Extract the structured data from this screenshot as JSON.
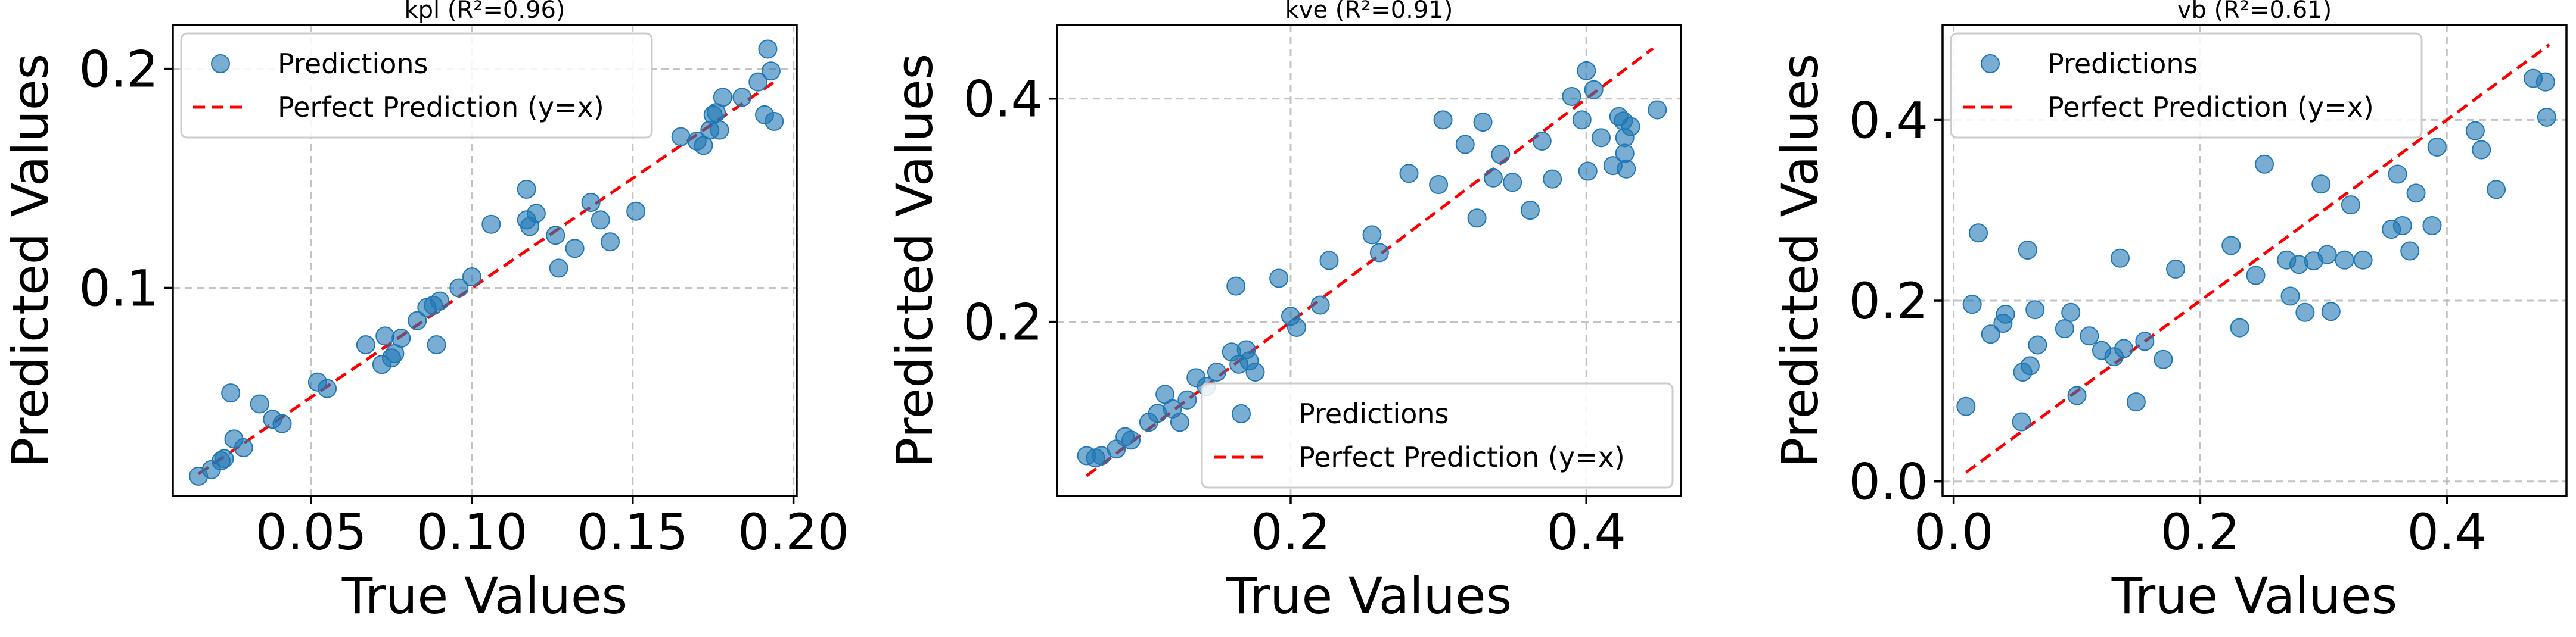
{
  "chart_data": [
    {
      "type": "scatter",
      "title": "kpl (R²=0.96)",
      "xlabel": "True Values",
      "ylabel": "Predicted Values",
      "xlim": [
        0.007,
        0.201
      ],
      "ylim": [
        0.005,
        0.22
      ],
      "xticks": [
        0.05,
        0.1,
        0.15,
        0.2
      ],
      "xtick_labels": [
        "0.05",
        "0.10",
        "0.15",
        "0.20"
      ],
      "yticks": [
        0.1,
        0.2
      ],
      "ytick_labels": [
        "0.1",
        "0.2"
      ],
      "grid": true,
      "legend_position": "upper-left",
      "series": [
        {
          "name": "Predictions",
          "kind": "points",
          "color": "#1f77b4",
          "points": [
            [
              0.015,
              0.014
            ],
            [
              0.019,
              0.017
            ],
            [
              0.022,
              0.021
            ],
            [
              0.023,
              0.022
            ],
            [
              0.025,
              0.052
            ],
            [
              0.026,
              0.031
            ],
            [
              0.029,
              0.027
            ],
            [
              0.034,
              0.047
            ],
            [
              0.038,
              0.04
            ],
            [
              0.041,
              0.038
            ],
            [
              0.052,
              0.057
            ],
            [
              0.055,
              0.054
            ],
            [
              0.067,
              0.074
            ],
            [
              0.072,
              0.065
            ],
            [
              0.073,
              0.078
            ],
            [
              0.075,
              0.068
            ],
            [
              0.076,
              0.07
            ],
            [
              0.078,
              0.077
            ],
            [
              0.083,
              0.085
            ],
            [
              0.086,
              0.091
            ],
            [
              0.088,
              0.092
            ],
            [
              0.089,
              0.074
            ],
            [
              0.09,
              0.094
            ],
            [
              0.096,
              0.1
            ],
            [
              0.1,
              0.105
            ],
            [
              0.106,
              0.129
            ],
            [
              0.117,
              0.145
            ],
            [
              0.117,
              0.131
            ],
            [
              0.118,
              0.128
            ],
            [
              0.12,
              0.134
            ],
            [
              0.126,
              0.124
            ],
            [
              0.127,
              0.109
            ],
            [
              0.132,
              0.118
            ],
            [
              0.137,
              0.139
            ],
            [
              0.14,
              0.131
            ],
            [
              0.143,
              0.121
            ],
            [
              0.151,
              0.135
            ],
            [
              0.165,
              0.169
            ],
            [
              0.17,
              0.167
            ],
            [
              0.172,
              0.165
            ],
            [
              0.174,
              0.172
            ],
            [
              0.175,
              0.179
            ],
            [
              0.176,
              0.18
            ],
            [
              0.177,
              0.172
            ],
            [
              0.178,
              0.187
            ],
            [
              0.184,
              0.187
            ],
            [
              0.189,
              0.194
            ],
            [
              0.191,
              0.179
            ],
            [
              0.192,
              0.209
            ],
            [
              0.193,
              0.199
            ],
            [
              0.194,
              0.176
            ]
          ]
        },
        {
          "name": "Perfect Prediction (y=x)",
          "kind": "line",
          "color": "#ff0000",
          "x": [
            0.015,
            0.194
          ],
          "y": [
            0.015,
            0.194
          ]
        }
      ]
    },
    {
      "type": "scatter",
      "title": "kve (R²=0.91)",
      "xlabel": "True Values",
      "ylabel": "Predicted Values",
      "xlim": [
        0.042,
        0.464
      ],
      "ylim": [
        0.044,
        0.466
      ],
      "xticks": [
        0.2,
        0.4
      ],
      "xtick_labels": [
        "0.2",
        "0.4"
      ],
      "yticks": [
        0.2,
        0.4
      ],
      "ytick_labels": [
        "0.2",
        "0.4"
      ],
      "grid": true,
      "legend_position": "lower-right",
      "series": [
        {
          "name": "Predictions",
          "kind": "points",
          "color": "#1f77b4",
          "points": [
            [
              0.062,
              0.08
            ],
            [
              0.068,
              0.078
            ],
            [
              0.072,
              0.08
            ],
            [
              0.082,
              0.086
            ],
            [
              0.088,
              0.097
            ],
            [
              0.092,
              0.094
            ],
            [
              0.104,
              0.11
            ],
            [
              0.11,
              0.118
            ],
            [
              0.115,
              0.135
            ],
            [
              0.12,
              0.122
            ],
            [
              0.125,
              0.11
            ],
            [
              0.13,
              0.13
            ],
            [
              0.136,
              0.15
            ],
            [
              0.143,
              0.142
            ],
            [
              0.15,
              0.155
            ],
            [
              0.16,
              0.173
            ],
            [
              0.163,
              0.232
            ],
            [
              0.165,
              0.162
            ],
            [
              0.17,
              0.175
            ],
            [
              0.172,
              0.165
            ],
            [
              0.176,
              0.155
            ],
            [
              0.192,
              0.239
            ],
            [
              0.2,
              0.205
            ],
            [
              0.204,
              0.195
            ],
            [
              0.22,
              0.215
            ],
            [
              0.226,
              0.255
            ],
            [
              0.255,
              0.278
            ],
            [
              0.26,
              0.262
            ],
            [
              0.28,
              0.333
            ],
            [
              0.3,
              0.323
            ],
            [
              0.303,
              0.381
            ],
            [
              0.318,
              0.359
            ],
            [
              0.326,
              0.293
            ],
            [
              0.33,
              0.379
            ],
            [
              0.337,
              0.329
            ],
            [
              0.342,
              0.35
            ],
            [
              0.35,
              0.325
            ],
            [
              0.362,
              0.3
            ],
            [
              0.37,
              0.362
            ],
            [
              0.377,
              0.328
            ],
            [
              0.39,
              0.402
            ],
            [
              0.397,
              0.381
            ],
            [
              0.4,
              0.425
            ],
            [
              0.401,
              0.335
            ],
            [
              0.405,
              0.408
            ],
            [
              0.41,
              0.365
            ],
            [
              0.418,
              0.34
            ],
            [
              0.422,
              0.384
            ],
            [
              0.425,
              0.38
            ],
            [
              0.426,
              0.365
            ],
            [
              0.426,
              0.351
            ],
            [
              0.427,
              0.337
            ],
            [
              0.43,
              0.375
            ],
            [
              0.448,
              0.39
            ]
          ]
        },
        {
          "name": "Perfect Prediction (y=x)",
          "kind": "line",
          "color": "#ff0000",
          "x": [
            0.062,
            0.445
          ],
          "y": [
            0.062,
            0.445
          ]
        }
      ]
    },
    {
      "type": "scatter",
      "title": "vb (R²=0.61)",
      "xlabel": "True Values",
      "ylabel": "Predicted Values",
      "xlim": [
        -0.009,
        0.497
      ],
      "ylim": [
        -0.016,
        0.505
      ],
      "xticks": [
        0.0,
        0.2,
        0.4
      ],
      "xtick_labels": [
        "0.0",
        "0.2",
        "0.4"
      ],
      "yticks": [
        0.0,
        0.2,
        0.4
      ],
      "ytick_labels": [
        "0.0",
        "0.2",
        "0.4"
      ],
      "grid": true,
      "legend_position": "upper-left",
      "series": [
        {
          "name": "Predictions",
          "kind": "points",
          "color": "#1f77b4",
          "points": [
            [
              0.01,
              0.083
            ],
            [
              0.015,
              0.196
            ],
            [
              0.02,
              0.275
            ],
            [
              0.03,
              0.163
            ],
            [
              0.04,
              0.175
            ],
            [
              0.042,
              0.185
            ],
            [
              0.055,
              0.066
            ],
            [
              0.056,
              0.121
            ],
            [
              0.06,
              0.256
            ],
            [
              0.062,
              0.128
            ],
            [
              0.066,
              0.19
            ],
            [
              0.068,
              0.151
            ],
            [
              0.09,
              0.169
            ],
            [
              0.095,
              0.187
            ],
            [
              0.1,
              0.095
            ],
            [
              0.11,
              0.161
            ],
            [
              0.12,
              0.145
            ],
            [
              0.13,
              0.138
            ],
            [
              0.135,
              0.247
            ],
            [
              0.138,
              0.147
            ],
            [
              0.148,
              0.088
            ],
            [
              0.155,
              0.155
            ],
            [
              0.17,
              0.135
            ],
            [
              0.18,
              0.235
            ],
            [
              0.225,
              0.261
            ],
            [
              0.232,
              0.17
            ],
            [
              0.245,
              0.228
            ],
            [
              0.252,
              0.351
            ],
            [
              0.27,
              0.245
            ],
            [
              0.273,
              0.205
            ],
            [
              0.28,
              0.24
            ],
            [
              0.285,
              0.187
            ],
            [
              0.292,
              0.244
            ],
            [
              0.298,
              0.329
            ],
            [
              0.303,
              0.251
            ],
            [
              0.306,
              0.188
            ],
            [
              0.317,
              0.245
            ],
            [
              0.322,
              0.306
            ],
            [
              0.332,
              0.245
            ],
            [
              0.355,
              0.279
            ],
            [
              0.36,
              0.34
            ],
            [
              0.364,
              0.283
            ],
            [
              0.37,
              0.255
            ],
            [
              0.375,
              0.319
            ],
            [
              0.388,
              0.283
            ],
            [
              0.392,
              0.37
            ],
            [
              0.423,
              0.388
            ],
            [
              0.428,
              0.367
            ],
            [
              0.44,
              0.323
            ],
            [
              0.47,
              0.446
            ],
            [
              0.48,
              0.442
            ],
            [
              0.481,
              0.403
            ]
          ]
        },
        {
          "name": "Perfect Prediction (y=x)",
          "kind": "line",
          "color": "#ff0000",
          "x": [
            0.01,
            0.483
          ],
          "y": [
            0.01,
            0.483
          ]
        }
      ]
    }
  ]
}
